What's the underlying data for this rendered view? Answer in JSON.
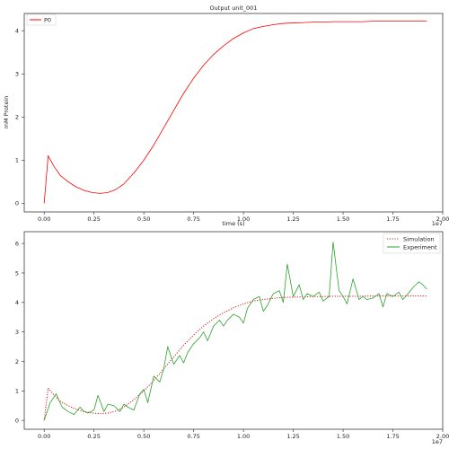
{
  "chart_data": [
    {
      "type": "line",
      "title": "Output unit_001",
      "xlabel": "time (s)",
      "ylabel": "mM Protein",
      "ylabel_color": "#ff0000",
      "x_offset_label": "1e7",
      "xlim": [
        -0.1,
        2.0
      ],
      "ylim": [
        -0.2,
        4.4
      ],
      "xticks": [
        0.0,
        0.25,
        0.5,
        0.75,
        1.0,
        1.25,
        1.5,
        1.75,
        2.0
      ],
      "xtick_labels": [
        "0.00",
        "0.25",
        "0.50",
        "0.75",
        "1.00",
        "1.25",
        "1.50",
        "1.75",
        "2.00"
      ],
      "yticks": [
        0,
        1,
        2,
        3,
        4
      ],
      "ytick_labels": [
        "0",
        "1",
        "2",
        "3",
        "4"
      ],
      "grid": false,
      "legend_position": "top-left",
      "series": [
        {
          "name": "P0",
          "color": "#ff0000",
          "style": "solid",
          "x": [
            0.0,
            0.02,
            0.05,
            0.08,
            0.12,
            0.16,
            0.2,
            0.24,
            0.28,
            0.32,
            0.36,
            0.4,
            0.45,
            0.5,
            0.55,
            0.6,
            0.65,
            0.7,
            0.75,
            0.8,
            0.85,
            0.9,
            0.95,
            1.0,
            1.05,
            1.1,
            1.15,
            1.2,
            1.25,
            1.3,
            1.35,
            1.4,
            1.45,
            1.5,
            1.55,
            1.6,
            1.65,
            1.7,
            1.75,
            1.8,
            1.85,
            1.92
          ],
          "y": [
            0.0,
            1.1,
            0.85,
            0.65,
            0.5,
            0.38,
            0.3,
            0.25,
            0.23,
            0.25,
            0.32,
            0.45,
            0.7,
            1.0,
            1.35,
            1.75,
            2.15,
            2.55,
            2.9,
            3.2,
            3.45,
            3.65,
            3.82,
            3.95,
            4.05,
            4.1,
            4.14,
            4.17,
            4.18,
            4.19,
            4.2,
            4.2,
            4.21,
            4.21,
            4.21,
            4.21,
            4.22,
            4.22,
            4.22,
            4.22,
            4.22,
            4.22
          ]
        }
      ]
    },
    {
      "type": "line",
      "title": "",
      "xlabel": "",
      "ylabel": "",
      "x_offset_label": "1e7",
      "xlim": [
        -0.1,
        2.0
      ],
      "ylim": [
        -0.3,
        6.4
      ],
      "xticks": [
        0.0,
        0.25,
        0.5,
        0.75,
        1.0,
        1.25,
        1.5,
        1.75,
        2.0
      ],
      "xtick_labels": [
        "0.00",
        "0.25",
        "0.50",
        "0.75",
        "1.00",
        "1.25",
        "1.50",
        "1.75",
        "2.00"
      ],
      "yticks": [
        0,
        1,
        2,
        3,
        4,
        5,
        6
      ],
      "ytick_labels": [
        "0",
        "1",
        "2",
        "3",
        "4",
        "5",
        "6"
      ],
      "grid": false,
      "legend_position": "top-right",
      "series": [
        {
          "name": "Simulation",
          "color": "#d62728",
          "style": "dotted",
          "x": [
            0.0,
            0.02,
            0.05,
            0.08,
            0.12,
            0.16,
            0.2,
            0.24,
            0.28,
            0.32,
            0.36,
            0.4,
            0.45,
            0.5,
            0.55,
            0.6,
            0.65,
            0.7,
            0.75,
            0.8,
            0.85,
            0.9,
            0.95,
            1.0,
            1.05,
            1.1,
            1.15,
            1.2,
            1.25,
            1.3,
            1.35,
            1.4,
            1.45,
            1.5,
            1.55,
            1.6,
            1.65,
            1.7,
            1.75,
            1.8,
            1.85,
            1.92
          ],
          "y": [
            0.0,
            1.1,
            0.85,
            0.65,
            0.5,
            0.38,
            0.3,
            0.25,
            0.23,
            0.25,
            0.32,
            0.45,
            0.7,
            1.0,
            1.35,
            1.75,
            2.15,
            2.55,
            2.9,
            3.2,
            3.45,
            3.65,
            3.82,
            3.95,
            4.05,
            4.1,
            4.14,
            4.17,
            4.18,
            4.19,
            4.2,
            4.2,
            4.21,
            4.21,
            4.21,
            4.21,
            4.22,
            4.22,
            4.22,
            4.22,
            4.22,
            4.22
          ]
        },
        {
          "name": "Experiment",
          "color": "#2ca02c",
          "style": "solid",
          "x": [
            0.0,
            0.03,
            0.06,
            0.09,
            0.12,
            0.15,
            0.18,
            0.2,
            0.22,
            0.25,
            0.27,
            0.3,
            0.32,
            0.35,
            0.38,
            0.4,
            0.42,
            0.45,
            0.48,
            0.5,
            0.52,
            0.55,
            0.58,
            0.6,
            0.62,
            0.65,
            0.68,
            0.7,
            0.72,
            0.75,
            0.78,
            0.8,
            0.82,
            0.85,
            0.88,
            0.9,
            0.92,
            0.95,
            0.98,
            1.0,
            1.02,
            1.05,
            1.08,
            1.1,
            1.12,
            1.15,
            1.18,
            1.2,
            1.22,
            1.25,
            1.28,
            1.3,
            1.32,
            1.35,
            1.38,
            1.4,
            1.43,
            1.45,
            1.48,
            1.5,
            1.52,
            1.55,
            1.58,
            1.6,
            1.62,
            1.65,
            1.68,
            1.7,
            1.72,
            1.75,
            1.78,
            1.8,
            1.82,
            1.85,
            1.88,
            1.9,
            1.92
          ],
          "y": [
            0.0,
            0.6,
            0.9,
            0.45,
            0.3,
            0.2,
            0.45,
            0.3,
            0.25,
            0.35,
            0.85,
            0.3,
            0.55,
            0.5,
            0.3,
            0.55,
            0.45,
            0.35,
            0.9,
            1.05,
            0.6,
            1.5,
            1.3,
            1.75,
            2.5,
            1.9,
            2.2,
            1.95,
            2.3,
            2.6,
            2.8,
            3.0,
            2.7,
            3.2,
            3.4,
            3.2,
            3.4,
            3.6,
            3.5,
            3.3,
            3.8,
            4.1,
            4.2,
            3.7,
            3.9,
            4.3,
            4.4,
            4.0,
            5.3,
            4.2,
            4.6,
            4.1,
            4.3,
            4.2,
            4.35,
            4.05,
            4.2,
            6.05,
            4.4,
            4.2,
            3.95,
            4.8,
            4.1,
            4.2,
            4.1,
            4.15,
            4.3,
            3.85,
            4.3,
            4.2,
            4.35,
            4.1,
            4.25,
            4.5,
            4.7,
            4.6,
            4.45
          ]
        }
      ]
    }
  ]
}
